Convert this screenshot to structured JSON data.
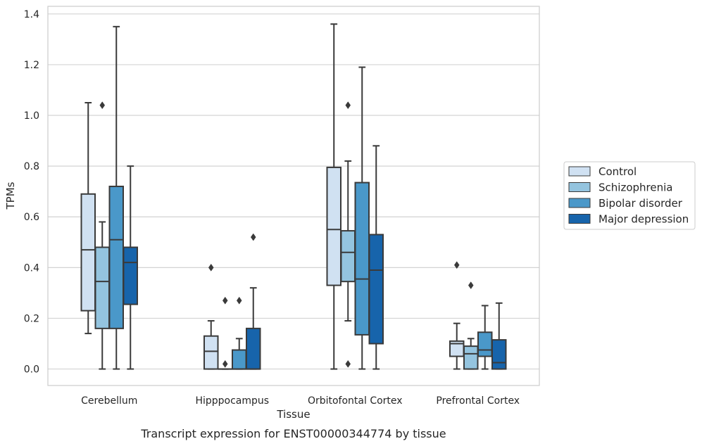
{
  "caption": "Transcript expression for ENST00000344774 by tissue",
  "colors": {
    "Control": "#d0e1f2",
    "Schizophrenia": "#94c4df",
    "Bipolar disorder": "#4a98c9",
    "Major depression": "#1764ab",
    "edge": "#3a3a3a",
    "grid": "#d3d3d3"
  },
  "chart_data": {
    "type": "box",
    "xlabel": "Tissue",
    "ylabel": "TPMs",
    "ylim": [
      -0.065,
      1.43
    ],
    "yticks": [
      "0.0",
      "0.2",
      "0.4",
      "0.6",
      "0.8",
      "1.0",
      "1.2",
      "1.4"
    ],
    "grid": "horizontal",
    "legend_position": "right",
    "categories": [
      "Cerebellum",
      "Hipppocampus",
      "Orbitofontal Cortex",
      "Prefrontal Cortex"
    ],
    "series": [
      {
        "name": "Control",
        "boxes": [
          {
            "whislo": 0.14,
            "q1": 0.23,
            "med": 0.47,
            "q3": 0.69,
            "whishi": 1.05,
            "fliers": []
          },
          {
            "whislo": 0.0,
            "q1": 0.0,
            "med": 0.07,
            "q3": 0.13,
            "whishi": 0.19,
            "fliers": [
              0.4
            ]
          },
          {
            "whislo": 0.0,
            "q1": 0.33,
            "med": 0.55,
            "q3": 0.795,
            "whishi": 1.36,
            "fliers": []
          },
          {
            "whislo": 0.0,
            "q1": 0.05,
            "med": 0.1,
            "q3": 0.11,
            "whishi": 0.18,
            "fliers": [
              0.41
            ]
          }
        ]
      },
      {
        "name": "Schizophrenia",
        "boxes": [
          {
            "whislo": 0.0,
            "q1": 0.16,
            "med": 0.345,
            "q3": 0.48,
            "whishi": 0.58,
            "fliers": [
              1.04
            ]
          },
          {
            "whislo": 0.0,
            "q1": 0.0,
            "med": 0.0,
            "q3": 0.0,
            "whishi": 0.0,
            "fliers": [
              0.02,
              0.27
            ]
          },
          {
            "whislo": 0.19,
            "q1": 0.345,
            "med": 0.46,
            "q3": 0.545,
            "whishi": 0.82,
            "fliers": [
              0.02,
              1.04
            ]
          },
          {
            "whislo": 0.0,
            "q1": 0.0,
            "med": 0.06,
            "q3": 0.09,
            "whishi": 0.12,
            "fliers": [
              0.33
            ]
          }
        ]
      },
      {
        "name": "Bipolar disorder",
        "boxes": [
          {
            "whislo": 0.0,
            "q1": 0.16,
            "med": 0.51,
            "q3": 0.72,
            "whishi": 1.35,
            "fliers": []
          },
          {
            "whislo": 0.0,
            "q1": 0.0,
            "med": 0.0,
            "q3": 0.075,
            "whishi": 0.12,
            "fliers": [
              0.27
            ]
          },
          {
            "whislo": 0.0,
            "q1": 0.135,
            "med": 0.355,
            "q3": 0.735,
            "whishi": 1.19,
            "fliers": []
          },
          {
            "whislo": 0.0,
            "q1": 0.05,
            "med": 0.075,
            "q3": 0.145,
            "whishi": 0.25,
            "fliers": []
          }
        ]
      },
      {
        "name": "Major depression",
        "boxes": [
          {
            "whislo": 0.0,
            "q1": 0.255,
            "med": 0.42,
            "q3": 0.48,
            "whishi": 0.8,
            "fliers": []
          },
          {
            "whislo": 0.0,
            "q1": 0.0,
            "med": 0.0,
            "q3": 0.16,
            "whishi": 0.32,
            "fliers": [
              0.52
            ]
          },
          {
            "whislo": 0.0,
            "q1": 0.1,
            "med": 0.39,
            "q3": 0.53,
            "whishi": 0.88,
            "fliers": []
          },
          {
            "whislo": 0.0,
            "q1": 0.0,
            "med": 0.025,
            "q3": 0.115,
            "whishi": 0.26,
            "fliers": []
          }
        ]
      }
    ]
  }
}
